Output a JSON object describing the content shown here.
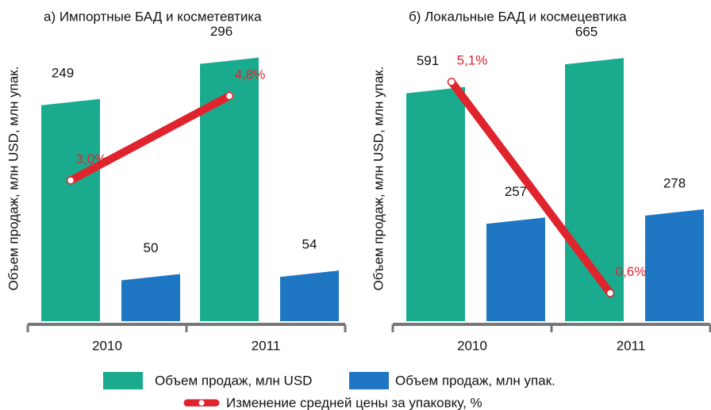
{
  "chart_data": [
    {
      "type": "bar",
      "title": "а) Импортные БАД и косметевтика",
      "ylabel": "Объем продаж, млн USD, млн упак.",
      "categories": [
        "2010",
        "2011"
      ],
      "ylim": [
        0,
        320
      ],
      "y2lim": [
        0,
        6
      ],
      "series": [
        {
          "name": "Объем продаж, млн USD",
          "color": "#1aab8e",
          "values": [
            249,
            296
          ]
        },
        {
          "name": "Объем продаж, млн упак.",
          "color": "#1f77c4",
          "values": [
            50,
            54
          ]
        },
        {
          "name": "Изменение средней цены за упаковку, %",
          "color": "#e0242d",
          "type": "line",
          "axis": "y2",
          "values": [
            3.0,
            4.8
          ],
          "value_labels": [
            "3,0%",
            "4,8%"
          ]
        }
      ]
    },
    {
      "type": "bar",
      "title": "б) Локальные БАД и космецевтика",
      "ylabel": "Объем продаж, млн USD, млн упак.",
      "categories": [
        "2010",
        "2011"
      ],
      "ylim": [
        0,
        720
      ],
      "y2lim": [
        0,
        6
      ],
      "series": [
        {
          "name": "Объем продаж, млн USD",
          "color": "#1aab8e",
          "values": [
            591,
            665
          ]
        },
        {
          "name": "Объем продаж, млн упак.",
          "color": "#1f77c4",
          "values": [
            257,
            278
          ]
        },
        {
          "name": "Изменение средней цены за упаковку, %",
          "color": "#e0242d",
          "type": "line",
          "axis": "y2",
          "values": [
            5.1,
            0.6
          ],
          "value_labels": [
            "5,1%",
            "0,6%"
          ]
        }
      ]
    }
  ]
}
